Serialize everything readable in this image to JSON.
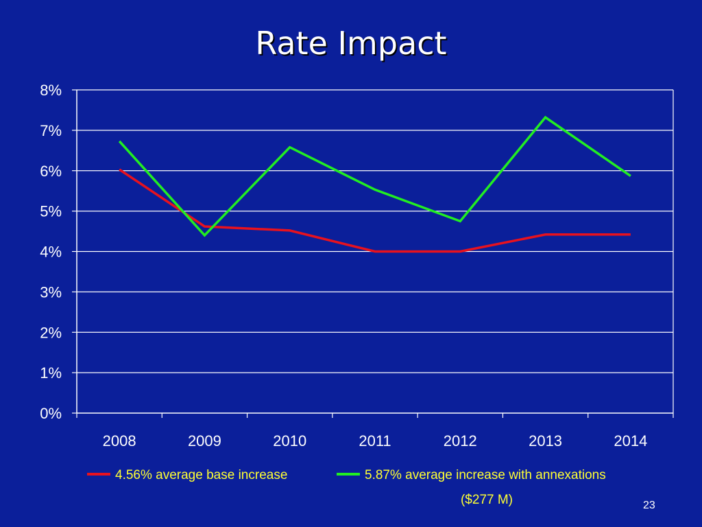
{
  "slide": {
    "title": "Rate Impact",
    "page_number": "23"
  },
  "colors": {
    "background": "#0b1f9a",
    "axis": "#ffffff",
    "gridline": "#ffffff",
    "legend_text": "#ffff33",
    "series_base": "#e8121e",
    "series_annex": "#22ee22"
  },
  "chart_data": {
    "type": "line",
    "title": "",
    "xlabel": "",
    "ylabel": "",
    "categories": [
      "2008",
      "2009",
      "2010",
      "2011",
      "2012",
      "2013",
      "2014"
    ],
    "y_tick_labels": [
      "0%",
      "1%",
      "2%",
      "3%",
      "4%",
      "5%",
      "6%",
      "7%",
      "8%"
    ],
    "ylim": [
      0,
      8
    ],
    "grid": true,
    "legend_position": "bottom",
    "series": [
      {
        "name": "4.56% average base increase",
        "color": "#e8121e",
        "values": [
          6.03,
          4.62,
          4.52,
          4.0,
          4.0,
          4.42,
          4.42
        ]
      },
      {
        "name": "5.87% average increase with annexations",
        "name_continued": "($277 M)",
        "color": "#22ee22",
        "values": [
          6.73,
          4.4,
          6.58,
          5.53,
          4.75,
          7.32,
          5.87
        ]
      }
    ]
  }
}
